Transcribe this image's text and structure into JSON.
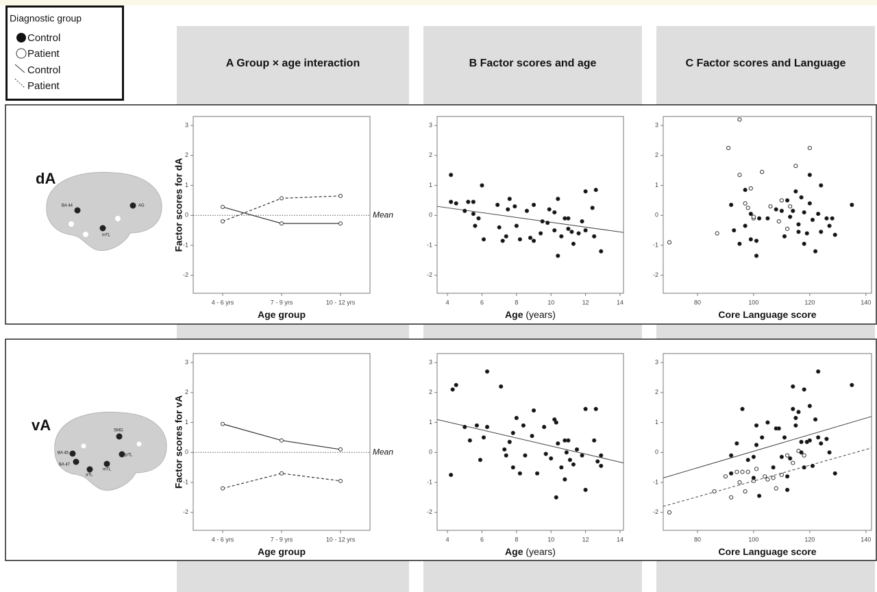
{
  "legend": {
    "title": "Diagnostic group",
    "items": [
      "Control",
      "Patient",
      "Control",
      "Patient"
    ]
  },
  "column_titles": [
    "A Group × age interaction",
    "B Factor scores and age",
    "C Factor scores and Language"
  ],
  "row_labels": [
    "dA",
    "vA"
  ],
  "brain_labels": [
    [
      "BA 44",
      "AG",
      "mTL"
    ],
    [
      "SMG",
      "BA 45",
      "BA 47",
      "aTL",
      "mTL",
      "pTL"
    ]
  ],
  "chart_data": [
    {
      "type": "line",
      "ylabel": "Factor scores for dA",
      "xlabel": "Age group",
      "categories": [
        "4 - 6 yrs",
        "7 - 9 yrs",
        "10 - 12 yrs"
      ],
      "series": [
        {
          "marker": "open",
          "dash": false,
          "values": [
            0.28,
            -0.27,
            -0.27
          ]
        },
        {
          "marker": "open",
          "dash": true,
          "values": [
            -0.2,
            0.57,
            0.65
          ]
        }
      ],
      "reference_line": {
        "value": 0,
        "label": "Mean"
      },
      "ylim": [
        -2.6,
        3.3
      ],
      "yticks": [
        -2,
        -1,
        0,
        1,
        2,
        3
      ]
    },
    {
      "type": "scatter",
      "xlabel": "Age",
      "xlabel_unit": "(years)",
      "series": [
        {
          "marker": "filled",
          "x": [
            4.2,
            4.2,
            4.5,
            5.0,
            5.2,
            5.5,
            5.5,
            6.0,
            5.8,
            5.6,
            6.1,
            6.9,
            7.0,
            7.2,
            7.5,
            7.4,
            7.6,
            7.9,
            8.0,
            8.2,
            8.6,
            8.8,
            9.0,
            9.0,
            9.5,
            9.4,
            9.8,
            9.9,
            10.2,
            10.2,
            10.4,
            10.4,
            10.6,
            10.8,
            11.0,
            11.0,
            11.2,
            11.3,
            11.6,
            11.8,
            12.0,
            12.0,
            12.4,
            12.5,
            12.6,
            12.9
          ],
          "values": [
            1.35,
            0.45,
            0.4,
            0.15,
            0.45,
            0.45,
            0.05,
            1.0,
            -0.1,
            -0.35,
            -0.8,
            0.35,
            -0.4,
            -0.85,
            0.2,
            -0.7,
            0.55,
            0.3,
            -0.35,
            -0.8,
            0.15,
            -0.75,
            -0.85,
            0.35,
            -0.2,
            -0.6,
            -0.25,
            0.2,
            0.1,
            -0.5,
            -1.35,
            0.55,
            -0.7,
            -0.1,
            -0.45,
            -0.1,
            -0.55,
            -0.95,
            -0.6,
            -0.2,
            0.8,
            -0.5,
            0.25,
            -0.7,
            0.85,
            -1.2
          ]
        }
      ],
      "fits": [
        {
          "dash": false,
          "x": [
            3.4,
            14.2
          ],
          "values": [
            0.3,
            -0.57
          ]
        }
      ],
      "xlim": [
        3.4,
        14.2
      ],
      "xticks": [
        4,
        6,
        8,
        10,
        12,
        14
      ],
      "ylim": [
        -2.6,
        3.3
      ],
      "yticks": [
        -2,
        -1,
        0,
        1,
        2,
        3
      ]
    },
    {
      "type": "scatter",
      "xlabel": "Core Language score",
      "series": [
        {
          "marker": "open",
          "x": [
            70,
            87,
            91,
            95,
            95,
            97,
            98,
            100,
            100,
            103,
            109,
            110,
            112,
            113,
            115,
            120,
            106,
            99
          ],
          "values": [
            -0.9,
            -0.6,
            2.25,
            3.2,
            1.35,
            0.4,
            0.25,
            -0.1,
            -0.05,
            1.45,
            -0.2,
            0.5,
            -0.45,
            0.3,
            1.65,
            2.25,
            0.3,
            0.9
          ]
        },
        {
          "marker": "filled",
          "x": [
            92,
            93,
            95,
            97,
            97,
            99,
            99,
            101,
            101,
            102,
            105,
            108,
            110,
            111,
            112,
            113,
            114,
            115,
            116,
            116,
            117,
            118,
            118,
            119,
            120,
            120,
            121,
            122,
            123,
            124,
            124,
            126,
            127,
            128,
            129,
            135
          ],
          "values": [
            0.35,
            -0.5,
            -0.95,
            0.85,
            -0.35,
            0.05,
            -0.8,
            -0.85,
            -1.35,
            -0.1,
            -0.1,
            0.2,
            0.15,
            -0.7,
            0.5,
            -0.05,
            0.15,
            0.8,
            -0.55,
            -0.3,
            0.6,
            0.1,
            -0.95,
            -0.6,
            1.35,
            0.4,
            -0.15,
            -1.2,
            0.05,
            1.0,
            -0.55,
            -0.1,
            -0.35,
            -0.1,
            -0.65,
            0.35
          ]
        }
      ],
      "fits": [],
      "xlim": [
        67.8,
        142
      ],
      "xticks": [
        80,
        100,
        120,
        140
      ],
      "ylim": [
        -2.6,
        3.3
      ],
      "yticks": [
        -2,
        -1,
        0,
        1,
        2,
        3
      ]
    },
    {
      "type": "line",
      "ylabel": "Factor scores for vA",
      "xlabel": "Age group",
      "categories": [
        "4 - 6 yrs",
        "7 - 9 yrs",
        "10 - 12 yrs"
      ],
      "series": [
        {
          "marker": "open",
          "dash": false,
          "values": [
            0.95,
            0.4,
            0.1
          ]
        },
        {
          "marker": "open",
          "dash": true,
          "values": [
            -1.2,
            -0.7,
            -0.95
          ]
        }
      ],
      "reference_line": {
        "value": 0,
        "label": "Mean"
      },
      "ylim": [
        -2.6,
        3.3
      ],
      "yticks": [
        -2,
        -1,
        0,
        1,
        2,
        3
      ]
    },
    {
      "type": "scatter",
      "xlabel": "Age",
      "xlabel_unit": "(years)",
      "series": [
        {
          "marker": "filled",
          "x": [
            4.2,
            4.3,
            4.5,
            5.0,
            5.3,
            5.7,
            5.9,
            6.1,
            6.3,
            6.3,
            7.1,
            7.3,
            7.4,
            7.6,
            7.8,
            7.8,
            8.0,
            8.2,
            8.4,
            8.5,
            8.9,
            9.0,
            9.2,
            9.6,
            9.7,
            10.0,
            10.2,
            10.3,
            10.3,
            10.4,
            10.6,
            10.8,
            10.8,
            10.9,
            11.0,
            11.1,
            11.3,
            11.5,
            11.8,
            12.0,
            12.0,
            12.5,
            12.6,
            12.7,
            12.9,
            12.9
          ],
          "values": [
            -0.75,
            2.1,
            2.25,
            0.85,
            0.4,
            0.9,
            -0.25,
            0.5,
            2.7,
            0.85,
            2.2,
            0.1,
            -0.1,
            0.35,
            -0.5,
            0.65,
            1.15,
            -0.7,
            0.9,
            -0.1,
            0.55,
            1.4,
            -0.7,
            0.85,
            -0.05,
            -0.2,
            1.1,
            -1.5,
            1.0,
            0.3,
            -0.5,
            0.4,
            -0.9,
            0.0,
            0.4,
            -0.25,
            -0.4,
            0.1,
            -0.1,
            1.45,
            -1.25,
            0.4,
            1.45,
            -0.3,
            -0.45,
            -0.1
          ]
        }
      ],
      "fits": [
        {
          "dash": false,
          "x": [
            3.4,
            14.2
          ],
          "values": [
            1.1,
            -0.35
          ]
        }
      ],
      "xlim": [
        3.4,
        14.2
      ],
      "xticks": [
        4,
        6,
        8,
        10,
        12,
        14
      ],
      "ylim": [
        -2.6,
        3.3
      ],
      "yticks": [
        -2,
        -1,
        0,
        1,
        2,
        3
      ]
    },
    {
      "type": "scatter",
      "xlabel": "Core Language score",
      "series": [
        {
          "marker": "open",
          "x": [
            70,
            86,
            90,
            92,
            94,
            95,
            96,
            97,
            98,
            100,
            101,
            104,
            105,
            107,
            108,
            110,
            112,
            114,
            116,
            118
          ],
          "values": [
            -2.0,
            -1.3,
            -0.8,
            -1.5,
            -0.65,
            -1.0,
            -0.65,
            -1.3,
            -0.65,
            -0.95,
            -0.55,
            -0.8,
            -0.9,
            -0.85,
            -1.2,
            -0.75,
            -0.1,
            -0.35,
            0.05,
            -0.1
          ]
        },
        {
          "marker": "filled",
          "x": [
            92,
            92,
            94,
            96,
            98,
            100,
            100,
            101,
            101,
            102,
            103,
            105,
            107,
            108,
            109,
            110,
            111,
            112,
            112,
            113,
            114,
            114,
            115,
            115,
            116,
            117,
            117,
            118,
            118,
            119,
            120,
            120,
            121,
            122,
            123,
            123,
            124,
            126,
            127,
            129,
            135
          ],
          "values": [
            -0.7,
            -0.1,
            0.3,
            1.45,
            -0.25,
            -0.85,
            -0.15,
            0.25,
            0.9,
            -1.45,
            0.5,
            1.0,
            -0.5,
            0.8,
            0.8,
            -0.15,
            0.5,
            -0.8,
            -1.25,
            -0.2,
            2.2,
            1.45,
            0.9,
            1.15,
            1.35,
            0.35,
            0.0,
            2.1,
            -0.5,
            0.35,
            1.55,
            0.4,
            -0.45,
            1.1,
            2.7,
            0.5,
            0.3,
            0.45,
            0.0,
            -0.7,
            2.25
          ]
        }
      ],
      "fits": [
        {
          "dash": false,
          "x": [
            67.8,
            142
          ],
          "values": [
            -0.85,
            1.2
          ]
        },
        {
          "dash": true,
          "x": [
            67.8,
            142
          ],
          "values": [
            -1.8,
            0.15
          ]
        }
      ],
      "xlim": [
        67.8,
        142
      ],
      "xticks": [
        80,
        100,
        120,
        140
      ],
      "ylim": [
        -2.6,
        3.3
      ],
      "yticks": [
        -2,
        -1,
        0,
        1,
        2,
        3
      ]
    }
  ]
}
